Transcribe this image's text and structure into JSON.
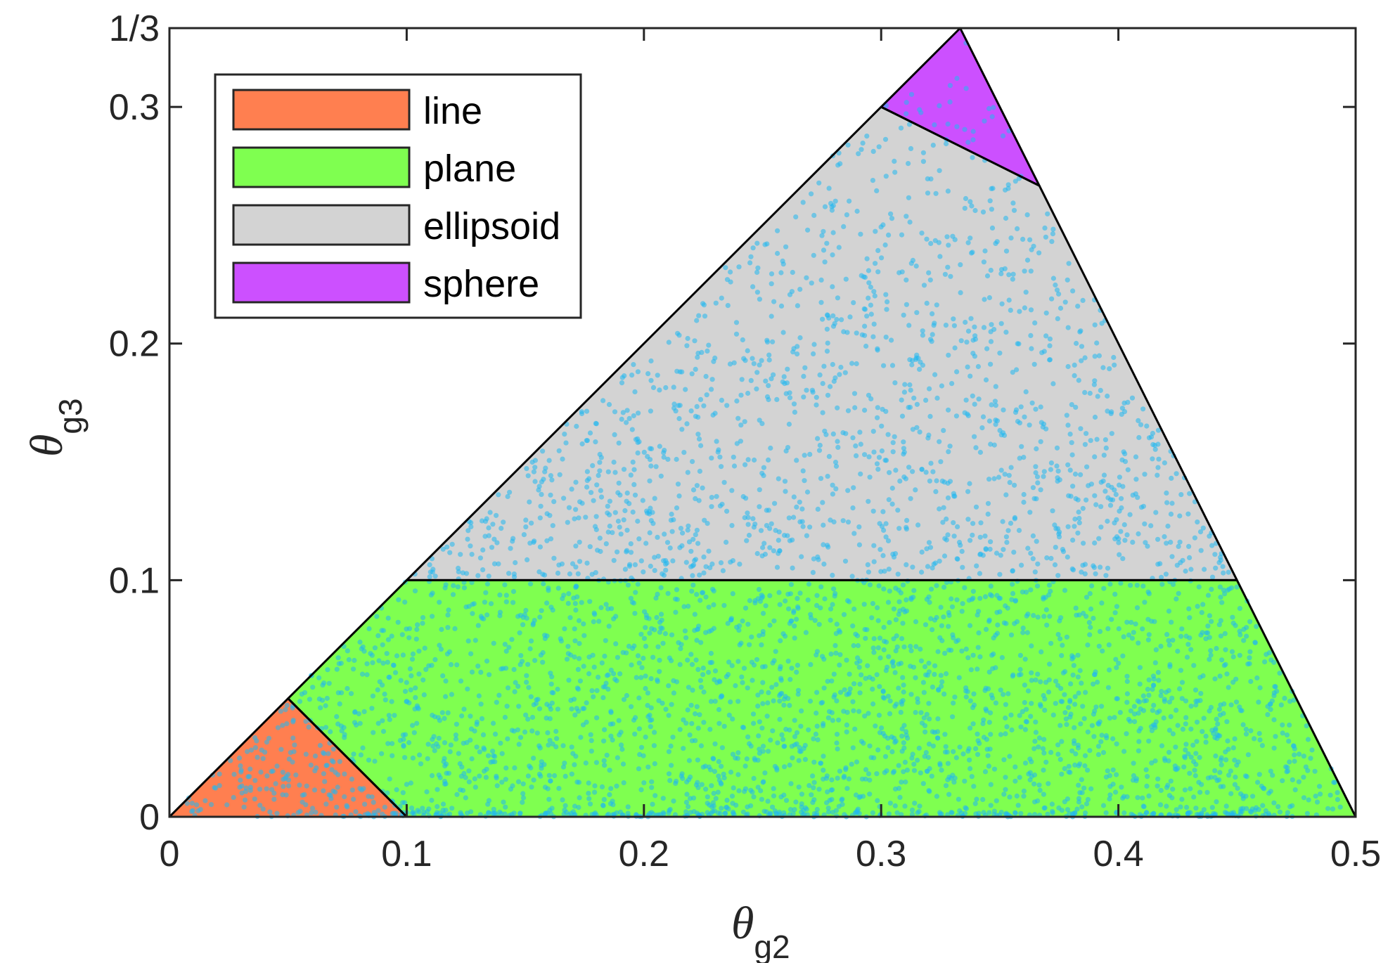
{
  "chart_data": {
    "type": "area",
    "title": "",
    "xlabel": {
      "symbol": "θ",
      "subscript": "g2"
    },
    "ylabel": {
      "symbol": "θ",
      "subscript": "g3"
    },
    "xlim": [
      0,
      0.5
    ],
    "ylim": [
      0,
      0.3333
    ],
    "xticks": [
      {
        "value": 0,
        "label": "0"
      },
      {
        "value": 0.1,
        "label": "0.1"
      },
      {
        "value": 0.2,
        "label": "0.2"
      },
      {
        "value": 0.3,
        "label": "0.3"
      },
      {
        "value": 0.4,
        "label": "0.4"
      },
      {
        "value": 0.5,
        "label": "0.5"
      }
    ],
    "yticks": [
      {
        "value": 0,
        "label": "0"
      },
      {
        "value": 0.1,
        "label": "0.1"
      },
      {
        "value": 0.2,
        "label": "0.2"
      },
      {
        "value": 0.3,
        "label": "0.3"
      },
      {
        "value": 0.3333,
        "label": "1/3"
      }
    ],
    "grid": false,
    "legend_position": "top-left",
    "regions": [
      {
        "name": "line",
        "color": "#FF7F50",
        "polygon": [
          [
            0,
            0
          ],
          [
            0.05,
            0.05
          ],
          [
            0.1,
            0
          ]
        ]
      },
      {
        "name": "plane",
        "color": "#7FFF50",
        "polygon": [
          [
            0.05,
            0.05
          ],
          [
            0.1,
            0
          ],
          [
            0.5,
            0
          ],
          [
            0.45,
            0.1
          ],
          [
            0.1,
            0.1
          ]
        ]
      },
      {
        "name": "ellipsoid",
        "color": "#D3D3D3",
        "polygon": [
          [
            0.1,
            0.1
          ],
          [
            0.45,
            0.1
          ],
          [
            0.3667,
            0.2667
          ],
          [
            0.3,
            0.3
          ]
        ]
      },
      {
        "name": "sphere",
        "color": "#CC50FF",
        "polygon": [
          [
            0.3,
            0.3
          ],
          [
            0.3333,
            0.3333
          ],
          [
            0.3667,
            0.2667
          ]
        ]
      }
    ],
    "scatter": {
      "color": "#20B8F0",
      "count": 4200,
      "description_units": "uniform random samples in the triangle, denser near θg3 = 0"
    }
  }
}
